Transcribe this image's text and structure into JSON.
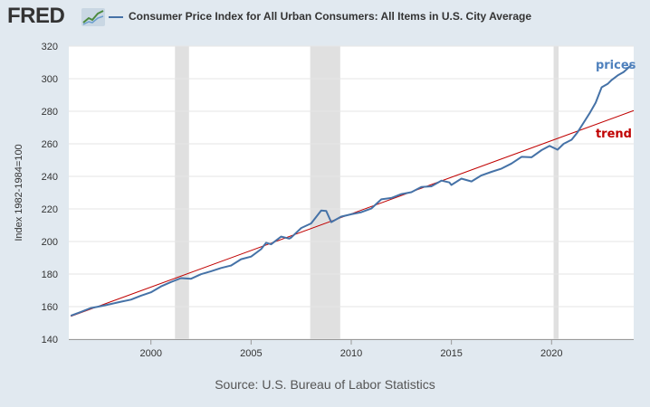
{
  "header": {
    "logo_text": "FRED",
    "series_title": "Consumer Price Index for All Urban Consumers: All Items in U.S. City Average"
  },
  "footer": {
    "source": "Source: U.S. Bureau of Labor Statistics"
  },
  "colors": {
    "series": "#4572a7",
    "trend": "#c00000",
    "recession": "#e0e0e0",
    "plot_bg": "#ffffff",
    "page_bg": "#e1e9f0",
    "prices_label": "#4f81bd",
    "trend_label": "#c00000"
  },
  "chart_data": {
    "type": "line",
    "title": "Consumer Price Index for All Urban Consumers: All Items in U.S. City Average",
    "xlabel": "",
    "ylabel": "Index 1982-1984=100",
    "xlim": [
      1995.9,
      2024.1
    ],
    "ylim": [
      140,
      320
    ],
    "x_ticks": [
      2000,
      2005,
      2010,
      2015,
      2020
    ],
    "x_tick_labels": [
      "2000",
      "2005",
      "2010",
      "2015",
      "2020"
    ],
    "y_ticks": [
      140,
      160,
      180,
      200,
      220,
      240,
      260,
      280,
      300,
      320
    ],
    "y_tick_labels": [
      "140",
      "160",
      "180",
      "200",
      "220",
      "240",
      "260",
      "280",
      "300",
      "320"
    ],
    "grid": true,
    "recessions": [
      {
        "start": 2001.2,
        "end": 2001.9
      },
      {
        "start": 2007.95,
        "end": 2009.45
      },
      {
        "start": 2020.1,
        "end": 2020.35
      }
    ],
    "series": [
      {
        "name": "prices",
        "x": [
          1996.0,
          1996.5,
          1997.0,
          1997.5,
          1998.0,
          1998.5,
          1999.0,
          1999.5,
          2000.0,
          2000.5,
          2001.0,
          2001.5,
          2002.0,
          2002.5,
          2003.0,
          2003.5,
          2004.0,
          2004.5,
          2005.0,
          2005.5,
          2005.75,
          2006.0,
          2006.5,
          2006.9,
          2007.0,
          2007.5,
          2008.0,
          2008.5,
          2008.75,
          2009.0,
          2009.5,
          2010.0,
          2010.5,
          2011.0,
          2011.5,
          2012.0,
          2012.5,
          2013.0,
          2013.5,
          2014.0,
          2014.5,
          2014.9,
          2015.0,
          2015.5,
          2016.0,
          2016.5,
          2017.0,
          2017.5,
          2018.0,
          2018.5,
          2019.0,
          2019.5,
          2019.9,
          2020.3,
          2020.6,
          2021.0,
          2021.3,
          2021.6,
          2021.9,
          2022.2,
          2022.5,
          2022.8,
          2023.0,
          2023.3,
          2023.6,
          2023.9,
          2024.0
        ],
        "values": [
          154.4,
          156.7,
          159.1,
          160.3,
          161.6,
          163.0,
          164.3,
          166.7,
          168.8,
          172.4,
          175.1,
          177.5,
          177.1,
          179.9,
          181.7,
          183.7,
          185.2,
          189.1,
          190.7,
          195.3,
          199.2,
          198.3,
          203.0,
          201.8,
          202.4,
          208.3,
          211.1,
          219.0,
          218.8,
          211.9,
          215.3,
          216.7,
          218.0,
          220.2,
          225.9,
          226.7,
          229.1,
          230.3,
          233.5,
          233.9,
          237.4,
          236.3,
          234.7,
          238.6,
          236.9,
          240.6,
          242.8,
          244.8,
          247.9,
          252.0,
          251.7,
          256.1,
          258.7,
          256.4,
          260.0,
          262.5,
          267.1,
          273.0,
          278.8,
          285.3,
          294.7,
          296.8,
          299.2,
          302.0,
          304.1,
          307.5,
          308.4
        ]
      },
      {
        "name": "trend",
        "x": [
          1996.0,
          2024.1
        ],
        "values": [
          154.0,
          280.4
        ]
      }
    ],
    "annotations": [
      {
        "text": "prices",
        "x": 2022.2,
        "y": 306,
        "color": "#4f81bd"
      },
      {
        "text": "trend",
        "x": 2022.2,
        "y": 264,
        "color": "#c00000"
      }
    ]
  }
}
